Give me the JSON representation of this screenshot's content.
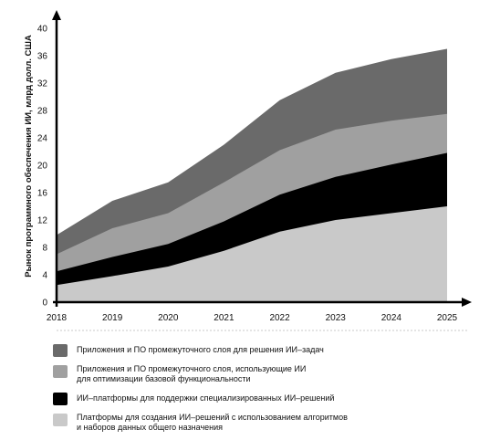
{
  "chart_data": {
    "type": "area",
    "stacked": true,
    "ylabel": "Рынок программного обеспечения ИИ, млрд долл. США",
    "xlabel": "",
    "title": "",
    "x": [
      2018,
      2019,
      2020,
      2021,
      2022,
      2023,
      2024,
      2025
    ],
    "x_ticks": [
      "2018",
      "2019",
      "2020",
      "2021",
      "2022",
      "2023",
      "2024",
      "2025"
    ],
    "y_ticks": [
      "0",
      "4",
      "8",
      "12",
      "16",
      "20",
      "24",
      "28",
      "32",
      "36",
      "40"
    ],
    "ylim": [
      0,
      40
    ],
    "grid": false,
    "legend_position": "bottom",
    "series": [
      {
        "name": "Платформы для создания ИИ–решений с использованием алгоритмов и наборов данных общего назначения",
        "color": "#c9c9c9",
        "values": [
          2.5,
          3.8,
          5.2,
          7.5,
          10.3,
          12.0,
          13.0,
          14.0
        ],
        "totals": [
          2.5,
          3.8,
          5.2,
          7.5,
          10.3,
          12.0,
          13.0,
          14.0
        ]
      },
      {
        "name": "ИИ–платформы для поддержки специализированных ИИ–решений",
        "color": "#000000",
        "values": [
          2.0,
          2.8,
          3.3,
          4.3,
          5.4,
          6.3,
          7.1,
          7.8
        ],
        "totals": [
          4.5,
          6.6,
          8.5,
          11.8,
          15.7,
          18.3,
          20.1,
          21.8
        ]
      },
      {
        "name": "Приложения и ПО промежуточного слоя, использующие ИИ для оптимизации базовой функциональности",
        "color": "#a0a0a0",
        "values": [
          2.5,
          4.2,
          4.5,
          5.7,
          6.5,
          6.9,
          6.4,
          5.7
        ],
        "totals": [
          7.0,
          10.8,
          13.0,
          17.5,
          22.2,
          25.2,
          26.5,
          27.5
        ]
      },
      {
        "name": "Приложения и ПО промежуточного слоя для решения ИИ–задач",
        "color": "#6a6a6a",
        "values": [
          2.8,
          4.0,
          4.5,
          5.5,
          7.3,
          8.3,
          9.0,
          9.5
        ],
        "totals": [
          9.8,
          14.8,
          17.5,
          23.0,
          29.5,
          33.5,
          35.5,
          37.0
        ]
      }
    ]
  },
  "legend": [
    {
      "lines": [
        "Приложения и ПО промежуточного слоя для решения ИИ–задач"
      ],
      "color": "#6a6a6a"
    },
    {
      "lines": [
        "Приложения и ПО промежуточного слоя, использующие ИИ",
        "для оптимизации базовой функциональности"
      ],
      "color": "#a0a0a0"
    },
    {
      "lines": [
        "ИИ–платформы для поддержки специализированных ИИ–решений"
      ],
      "color": "#000000"
    },
    {
      "lines": [
        "Платформы для создания ИИ–решений с использованием алгоритмов",
        "и наборов данных общего назначения"
      ],
      "color": "#c9c9c9"
    }
  ]
}
